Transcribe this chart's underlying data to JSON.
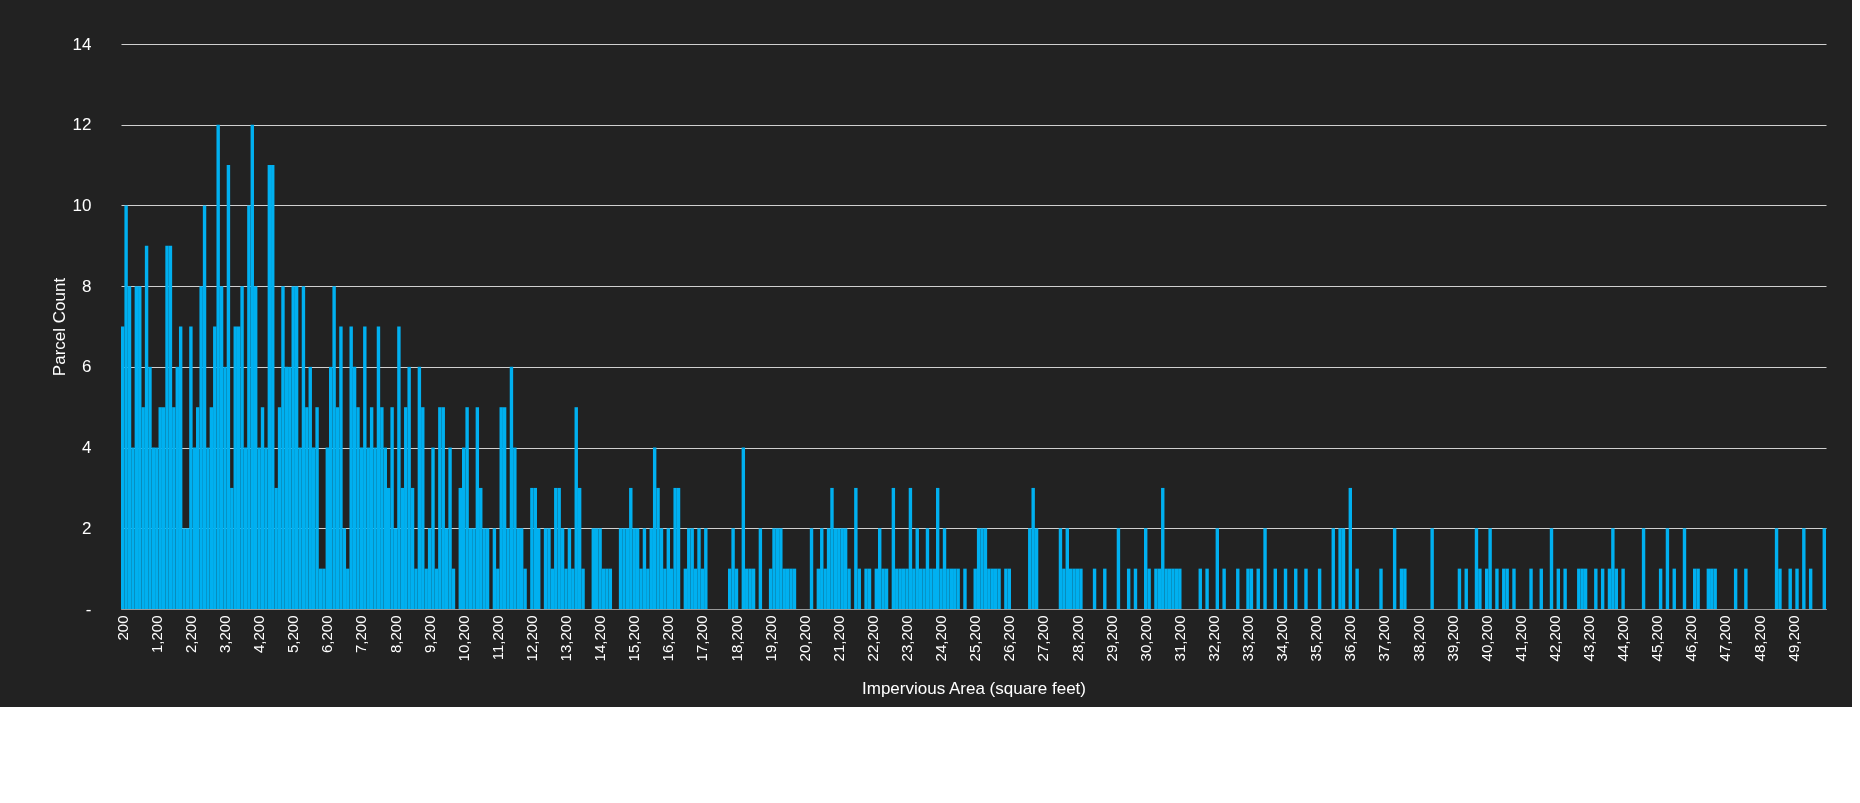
{
  "chart_data": {
    "type": "bar",
    "xlabel": "Impervious Area (square feet)",
    "ylabel": "Parcel Count",
    "categories": [
      "200",
      null,
      null,
      null,
      null,
      null,
      null,
      null,
      null,
      null,
      "1,200",
      null,
      null,
      null,
      null,
      null,
      null,
      null,
      null,
      null,
      "2,200",
      null,
      null,
      null,
      null,
      null,
      null,
      null,
      null,
      null,
      "3,200",
      null,
      null,
      null,
      null,
      null,
      null,
      null,
      null,
      null,
      "4,200",
      null,
      null,
      null,
      null,
      null,
      null,
      null,
      null,
      null,
      "5,200",
      null,
      null,
      null,
      null,
      null,
      null,
      null,
      null,
      null,
      "6,200",
      null,
      null,
      null,
      null,
      null,
      null,
      null,
      null,
      null,
      "7,200",
      null,
      null,
      null,
      null,
      null,
      null,
      null,
      null,
      null,
      "8,200",
      null,
      null,
      null,
      null,
      null,
      null,
      null,
      null,
      null,
      "9,200",
      null,
      null,
      null,
      null,
      null,
      null,
      null,
      null,
      null,
      "10,200",
      null,
      null,
      null,
      null,
      null,
      null,
      null,
      null,
      null,
      "11,200",
      null,
      null,
      null,
      null,
      null,
      null,
      null,
      null,
      null,
      "12,200",
      null,
      null,
      null,
      null,
      null,
      null,
      null,
      null,
      null,
      "13,200",
      null,
      null,
      null,
      null,
      null,
      null,
      null,
      null,
      null,
      "14,200",
      null,
      null,
      null,
      null,
      null,
      null,
      null,
      null,
      null,
      "15,200",
      null,
      null,
      null,
      null,
      null,
      null,
      null,
      null,
      null,
      "16,200",
      null,
      null,
      null,
      null,
      null,
      null,
      null,
      null,
      null,
      "17,200",
      null,
      null,
      null,
      null,
      null,
      null,
      null,
      null,
      null,
      "18,200",
      null,
      null,
      null,
      null,
      null,
      null,
      null,
      null,
      null,
      "19,200",
      null,
      null,
      null,
      null,
      null,
      null,
      null,
      null,
      null,
      "20,200",
      null,
      null,
      null,
      null,
      null,
      null,
      null,
      null,
      null,
      "21,200",
      null,
      null,
      null,
      null,
      null,
      null,
      null,
      null,
      null,
      "22,200",
      null,
      null,
      null,
      null,
      null,
      null,
      null,
      null,
      null,
      "23,200",
      null,
      null,
      null,
      null,
      null,
      null,
      null,
      null,
      null,
      "24,200",
      null,
      null,
      null,
      null,
      null,
      null,
      null,
      null,
      null,
      "25,200",
      null,
      null,
      null,
      null,
      null,
      null,
      null,
      null,
      null,
      "26,200",
      null,
      null,
      null,
      null,
      null,
      null,
      null,
      null,
      null,
      "27,200",
      null,
      null,
      null,
      null,
      null,
      null,
      null,
      null,
      null,
      "28,200",
      null,
      null,
      null,
      null,
      null,
      null,
      null,
      null,
      null,
      "29,200",
      null,
      null,
      null,
      null,
      null,
      null,
      null,
      null,
      null,
      "30,200",
      null,
      null,
      null,
      null,
      null,
      null,
      null,
      null,
      null,
      "31,200",
      null,
      null,
      null,
      null,
      null,
      null,
      null,
      null,
      null,
      "32,200",
      null,
      null,
      null,
      null,
      null,
      null,
      null,
      null,
      null,
      "33,200",
      null,
      null,
      null,
      null,
      null,
      null,
      null,
      null,
      null,
      "34,200",
      null,
      null,
      null,
      null,
      null,
      null,
      null,
      null,
      null,
      "35,200",
      null,
      null,
      null,
      null,
      null,
      null,
      null,
      null,
      null,
      "36,200",
      null,
      null,
      null,
      null,
      null,
      null,
      null,
      null,
      null,
      "37,200",
      null,
      null,
      null,
      null,
      null,
      null,
      null,
      null,
      null,
      "38,200",
      null,
      null,
      null,
      null,
      null,
      null,
      null,
      null,
      null,
      "39,200",
      null,
      null,
      null,
      null,
      null,
      null,
      null,
      null,
      null,
      "40,200",
      null,
      null,
      null,
      null,
      null,
      null,
      null,
      null,
      null,
      "41,200",
      null,
      null,
      null,
      null,
      null,
      null,
      null,
      null,
      null,
      "42,200",
      null,
      null,
      null,
      null,
      null,
      null,
      null,
      null,
      null,
      "43,200",
      null,
      null,
      null,
      null,
      null,
      null,
      null,
      null,
      null,
      "44,200",
      null,
      null,
      null,
      null,
      null,
      null,
      null,
      null,
      null,
      "45,200",
      null,
      null,
      null,
      null,
      null,
      null,
      null,
      null,
      null,
      "46,200",
      null,
      null,
      null,
      null,
      null,
      null,
      null,
      null,
      null,
      "47,200",
      null,
      null,
      null,
      null,
      null,
      null,
      null,
      null,
      null,
      "48,200",
      null,
      null,
      null,
      null,
      null,
      null,
      null,
      null,
      null,
      "49,200",
      null,
      null,
      null,
      null,
      null,
      null,
      null,
      null,
      null
    ],
    "values": [
      7,
      10,
      8,
      4,
      8,
      8,
      5,
      9,
      6,
      4,
      4,
      5,
      5,
      9,
      9,
      5,
      6,
      7,
      2,
      2,
      7,
      4,
      5,
      8,
      10,
      4,
      5,
      7,
      12,
      8,
      6,
      11,
      3,
      7,
      7,
      8,
      4,
      10,
      12,
      8,
      4,
      5,
      4,
      11,
      11,
      3,
      5,
      8,
      6,
      6,
      8,
      8,
      4,
      8,
      5,
      6,
      4,
      5,
      1,
      1,
      4,
      6,
      8,
      5,
      7,
      2,
      1,
      7,
      6,
      5,
      4,
      7,
      4,
      5,
      4,
      7,
      5,
      4,
      3,
      5,
      2,
      7,
      3,
      5,
      6,
      3,
      1,
      6,
      5,
      1,
      2,
      4,
      1,
      5,
      5,
      2,
      4,
      1,
      0,
      3,
      4,
      5,
      2,
      2,
      5,
      3,
      2,
      2,
      0,
      2,
      1,
      5,
      5,
      2,
      6,
      4,
      2,
      2,
      1,
      0,
      3,
      3,
      2,
      0,
      2,
      2,
      1,
      3,
      3,
      2,
      1,
      2,
      1,
      5,
      3,
      1,
      0,
      0,
      2,
      2,
      2,
      1,
      1,
      1,
      0,
      0,
      2,
      2,
      2,
      3,
      2,
      2,
      1,
      2,
      1,
      2,
      4,
      3,
      2,
      1,
      2,
      1,
      3,
      3,
      0,
      1,
      2,
      2,
      1,
      2,
      1,
      2,
      0,
      0,
      0,
      0,
      0,
      0,
      1,
      2,
      1,
      0,
      4,
      1,
      1,
      1,
      0,
      2,
      0,
      0,
      1,
      2,
      2,
      2,
      1,
      1,
      1,
      1,
      0,
      0,
      0,
      0,
      2,
      0,
      1,
      2,
      1,
      2,
      3,
      2,
      2,
      2,
      2,
      1,
      0,
      3,
      1,
      0,
      1,
      1,
      0,
      1,
      2,
      1,
      1,
      0,
      3,
      1,
      1,
      1,
      1,
      3,
      1,
      2,
      1,
      1,
      2,
      1,
      1,
      3,
      1,
      2,
      1,
      1,
      1,
      1,
      0,
      1,
      0,
      0,
      1,
      2,
      2,
      2,
      1,
      1,
      1,
      1,
      0,
      1,
      1,
      0,
      0,
      0,
      0,
      0,
      2,
      3,
      2,
      0,
      0,
      0,
      0,
      0,
      0,
      2,
      1,
      2,
      1,
      1,
      1,
      1,
      0,
      0,
      0,
      1,
      0,
      0,
      1,
      0,
      0,
      0,
      2,
      0,
      0,
      1,
      0,
      1,
      0,
      0,
      2,
      1,
      0,
      1,
      1,
      3,
      1,
      1,
      1,
      1,
      1,
      0,
      0,
      0,
      0,
      0,
      1,
      0,
      1,
      0,
      0,
      2,
      0,
      1,
      0,
      0,
      0,
      1,
      0,
      0,
      1,
      1,
      0,
      1,
      0,
      2,
      0,
      0,
      1,
      0,
      0,
      1,
      0,
      0,
      1,
      0,
      0,
      1,
      0,
      0,
      0,
      1,
      0,
      0,
      0,
      2,
      0,
      2,
      2,
      0,
      3,
      0,
      1,
      0,
      0,
      0,
      0,
      0,
      0,
      1,
      0,
      0,
      0,
      2,
      0,
      1,
      1,
      0,
      0,
      0,
      0,
      0,
      0,
      0,
      2,
      0,
      0,
      0,
      0,
      0,
      0,
      0,
      1,
      0,
      1,
      0,
      0,
      2,
      1,
      0,
      1,
      2,
      0,
      1,
      0,
      1,
      1,
      0,
      1,
      0,
      0,
      0,
      0,
      1,
      0,
      0,
      1,
      0,
      0,
      2,
      0,
      1,
      0,
      1,
      0,
      0,
      0,
      1,
      1,
      1,
      0,
      0,
      1,
      0,
      1,
      0,
      1,
      2,
      1,
      0,
      1,
      0,
      0,
      0,
      0,
      0,
      2,
      0,
      0,
      0,
      0,
      1,
      0,
      2,
      0,
      1,
      0,
      0,
      2,
      0,
      0,
      1,
      1,
      0,
      0,
      1,
      1,
      1,
      0,
      0,
      0,
      0,
      0,
      1,
      0,
      0,
      1,
      0,
      0,
      0,
      0,
      0,
      0,
      0,
      0,
      2,
      1,
      0,
      0,
      1,
      0,
      1,
      0,
      2,
      0,
      1,
      0,
      0,
      0,
      2
    ],
    "color": "#00b0f0",
    "ylim": [
      0,
      14
    ],
    "yticks": [
      {
        "value": 0,
        "label": "-"
      },
      2,
      4,
      6,
      8,
      10,
      12,
      14
    ],
    "grid": "y"
  }
}
